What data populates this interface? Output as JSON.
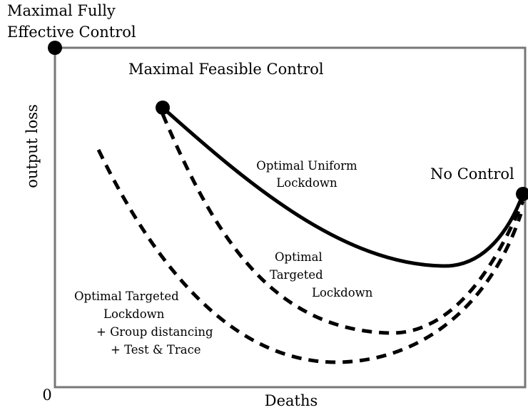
{
  "axes": {
    "y_label": "output loss",
    "x_label": "Deaths",
    "origin": "0"
  },
  "points": [
    {
      "lines": [
        "Maximal Fully",
        "Effective Control"
      ]
    },
    {
      "lines": [
        "Maximal Feasible Control"
      ]
    },
    {
      "lines": [
        "No Control"
      ]
    }
  ],
  "curves": [
    {
      "lines": [
        "Optimal Uniform",
        "Lockdown"
      ]
    },
    {
      "lines": [
        "Optimal",
        "Targeted",
        "Lockdown"
      ]
    },
    {
      "lines": [
        "Optimal Targeted",
        "Lockdown",
        "+ Group distancing",
        "+ Test & Trace"
      ]
    }
  ]
}
